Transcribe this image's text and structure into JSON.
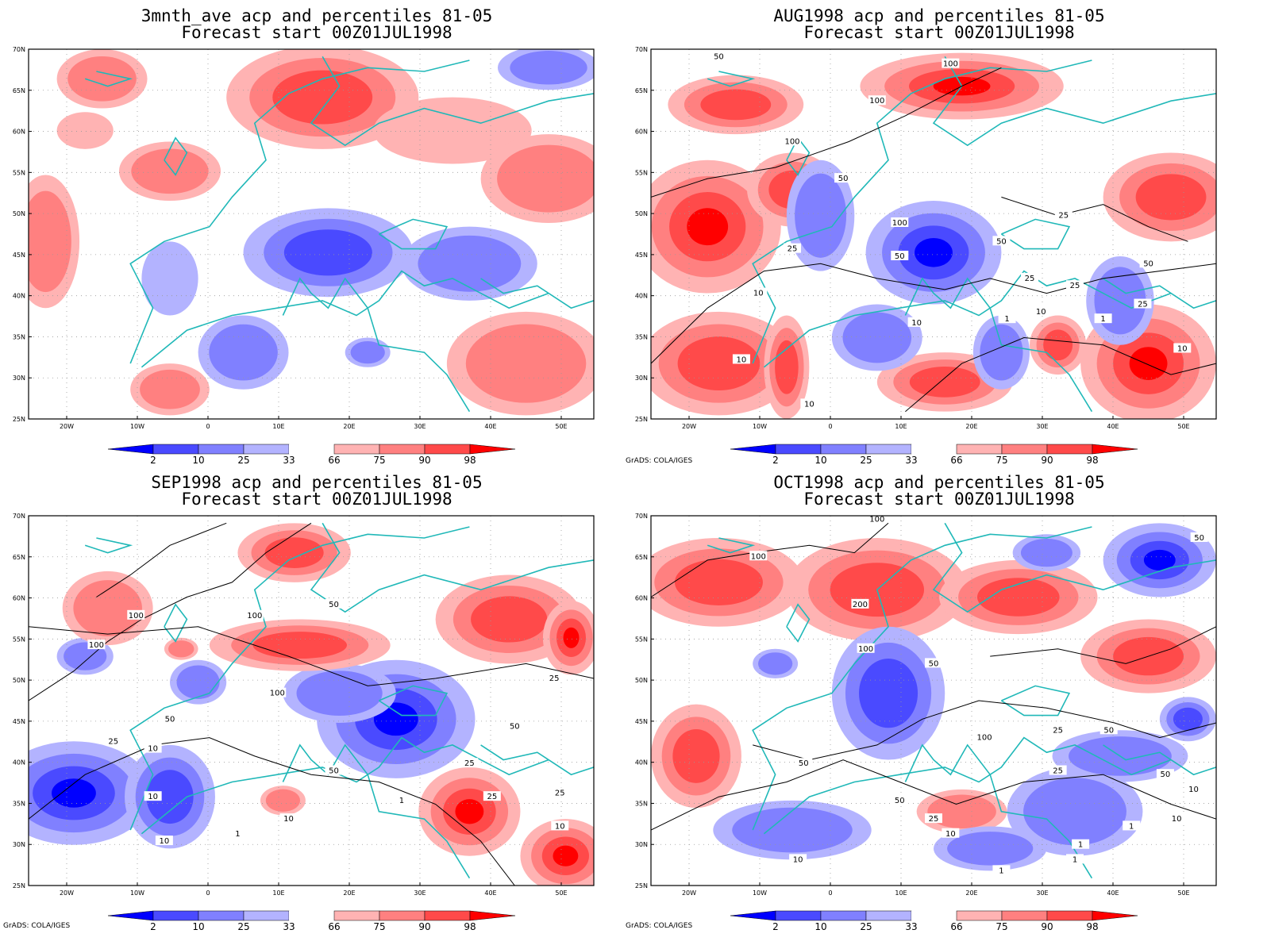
{
  "panels": [
    {
      "title1": "3mnth_ave acp and percentiles 81-05",
      "title2": "Forecast start 00Z01JUL1998",
      "contours": [],
      "credit": ""
    },
    {
      "title1": "AUG1998 acp and percentiles 81-05",
      "title2": "Forecast start 00Z01JUL1998",
      "contours": [
        "100",
        "100",
        "100",
        "100",
        "50",
        "50",
        "50",
        "50",
        "50",
        "25",
        "25",
        "25",
        "25",
        "25",
        "10",
        "10",
        "10",
        "10",
        "10",
        "10",
        "1",
        "1"
      ],
      "credit": "GrADS: COLA/IGES"
    },
    {
      "title1": "SEP1998 acp and percentiles 81-05",
      "title2": "Forecast start 00Z01JUL1998",
      "contours": [
        "100",
        "100",
        "100",
        "100",
        "50",
        "50",
        "50",
        "50",
        "25",
        "25",
        "25",
        "25",
        "10",
        "10",
        "10",
        "10",
        "1",
        "1",
        "25",
        "10"
      ],
      "credit": "GrADS: COLA/IGES"
    },
    {
      "title1": "OCT1998 acp and percentiles 81-05",
      "title2": "Forecast start 00Z01JUL1998",
      "contours": [
        "100",
        "100",
        "200",
        "100",
        "100",
        "50",
        "50",
        "50",
        "50",
        "50",
        "50",
        "25",
        "25",
        "25",
        "10",
        "10",
        "10",
        "10",
        "1",
        "1",
        "1",
        "1"
      ],
      "credit": "GrADS: COLA/IGES"
    }
  ],
  "axes": {
    "lat_labels": [
      "70N",
      "65N",
      "60N",
      "55N",
      "50N",
      "45N",
      "40N",
      "35N",
      "30N",
      "25N"
    ],
    "lon_labels": [
      "20W",
      "10W",
      "0",
      "10E",
      "20E",
      "30E",
      "40E",
      "50E"
    ]
  },
  "colorbar": {
    "labels": [
      "2",
      "10",
      "25",
      "33",
      "66",
      "75",
      "90",
      "98"
    ],
    "colors": [
      "#0000ff",
      "#4a4aff",
      "#8080ff",
      "#b3b3ff",
      "#ffffff",
      "#ffb3b3",
      "#ff8080",
      "#ff4a4a",
      "#ff0000"
    ]
  }
}
